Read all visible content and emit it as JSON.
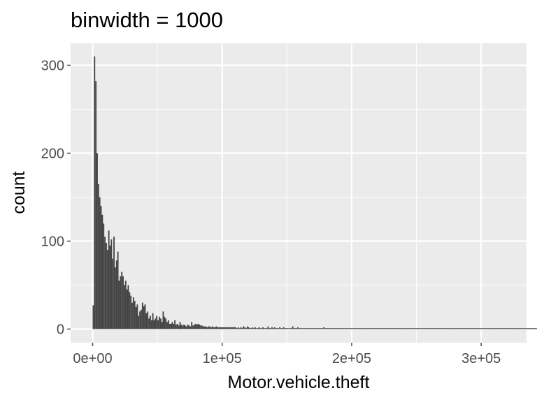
{
  "chart_data": {
    "type": "bar",
    "title": "binwidth = 1000",
    "xlabel": "Motor.vehicle.theft",
    "ylabel": "count",
    "binwidth": 1000,
    "xlim": [
      -17000,
      335000
    ],
    "ylim": [
      -15.5,
      325
    ],
    "x_ticks": [
      0,
      100000,
      200000,
      300000
    ],
    "x_tick_labels": [
      "0e+00",
      "1e+05",
      "2e+05",
      "3e+05"
    ],
    "y_ticks": [
      0,
      100,
      200,
      300
    ],
    "y_tick_labels": [
      "0",
      "100",
      "200",
      "300"
    ],
    "grid": true,
    "bin_start": 0,
    "counts": [
      27,
      310,
      282,
      200,
      165,
      150,
      140,
      130,
      120,
      105,
      98,
      90,
      112,
      95,
      102,
      80,
      105,
      70,
      78,
      88,
      55,
      60,
      65,
      60,
      50,
      55,
      45,
      50,
      42,
      38,
      30,
      36,
      32,
      25,
      28,
      15,
      20,
      22,
      30,
      26,
      28,
      18,
      20,
      12,
      15,
      10,
      18,
      10,
      12,
      15,
      10,
      14,
      12,
      8,
      20,
      14,
      12,
      8,
      10,
      6,
      6,
      8,
      6,
      10,
      5,
      6,
      4,
      8,
      5,
      4,
      5,
      4,
      3,
      5,
      4,
      3,
      8,
      4,
      5,
      6,
      5,
      6,
      5,
      4,
      4,
      3,
      3,
      3,
      2,
      3,
      3,
      2,
      3,
      2,
      2,
      3,
      2,
      2,
      2,
      2,
      2,
      2,
      2,
      2,
      2,
      2,
      2,
      2,
      2,
      2,
      2,
      1,
      2,
      1,
      2,
      1,
      3,
      2,
      1,
      3,
      2,
      1,
      1,
      2,
      1,
      2,
      1,
      1,
      2,
      1,
      1,
      2,
      1,
      1,
      1,
      3,
      1,
      1,
      2,
      1,
      2,
      1,
      1,
      1,
      2,
      1,
      1,
      2,
      1,
      1,
      1,
      1,
      1,
      1,
      3,
      1,
      1,
      1,
      2,
      1,
      1,
      1,
      1,
      1,
      1,
      1,
      1,
      1,
      1,
      1,
      1,
      1,
      1,
      1,
      1,
      1,
      1,
      1,
      2,
      1,
      1,
      1,
      1,
      1,
      1,
      1,
      1,
      1,
      1,
      1,
      1,
      1,
      1,
      1,
      1,
      1,
      1,
      1,
      1,
      1,
      1,
      1,
      1,
      1,
      1,
      1,
      1,
      1,
      1,
      1,
      1,
      1,
      1,
      1,
      1,
      1,
      1,
      1,
      1,
      1,
      1,
      1,
      1,
      1,
      1,
      1,
      1,
      1,
      1,
      1,
      1,
      1,
      1,
      1,
      1,
      1,
      1,
      1,
      1,
      1,
      1,
      1,
      1,
      1,
      1,
      1,
      1,
      1,
      1,
      1,
      1,
      1,
      1,
      1,
      1,
      1,
      1,
      1,
      1,
      1,
      1,
      1,
      1,
      1,
      1,
      1,
      1,
      1,
      1,
      1,
      1,
      1,
      1,
      1,
      1,
      1,
      1,
      1,
      1,
      1,
      1,
      1,
      1,
      1,
      1,
      1,
      1,
      1,
      1,
      1,
      1,
      1,
      1,
      1,
      1,
      1,
      1,
      1,
      1,
      1,
      1,
      1,
      1,
      1,
      1,
      1,
      1,
      1,
      1,
      1,
      1,
      1,
      1,
      1,
      1,
      1,
      1,
      1,
      1,
      1,
      1,
      1,
      1,
      1,
      1,
      1,
      1,
      1,
      1,
      1,
      1,
      1,
      1,
      1,
      1,
      1,
      1,
      1,
      1,
      1,
      1,
      1,
      1,
      1,
      1,
      1,
      1,
      1,
      1,
      1,
      1,
      1,
      1,
      1,
      1,
      1,
      1,
      1
    ],
    "colors": {
      "bar": "#444444",
      "panel": "#ebebeb",
      "grid": "#ffffff",
      "tick": "#4d4d4d"
    }
  }
}
